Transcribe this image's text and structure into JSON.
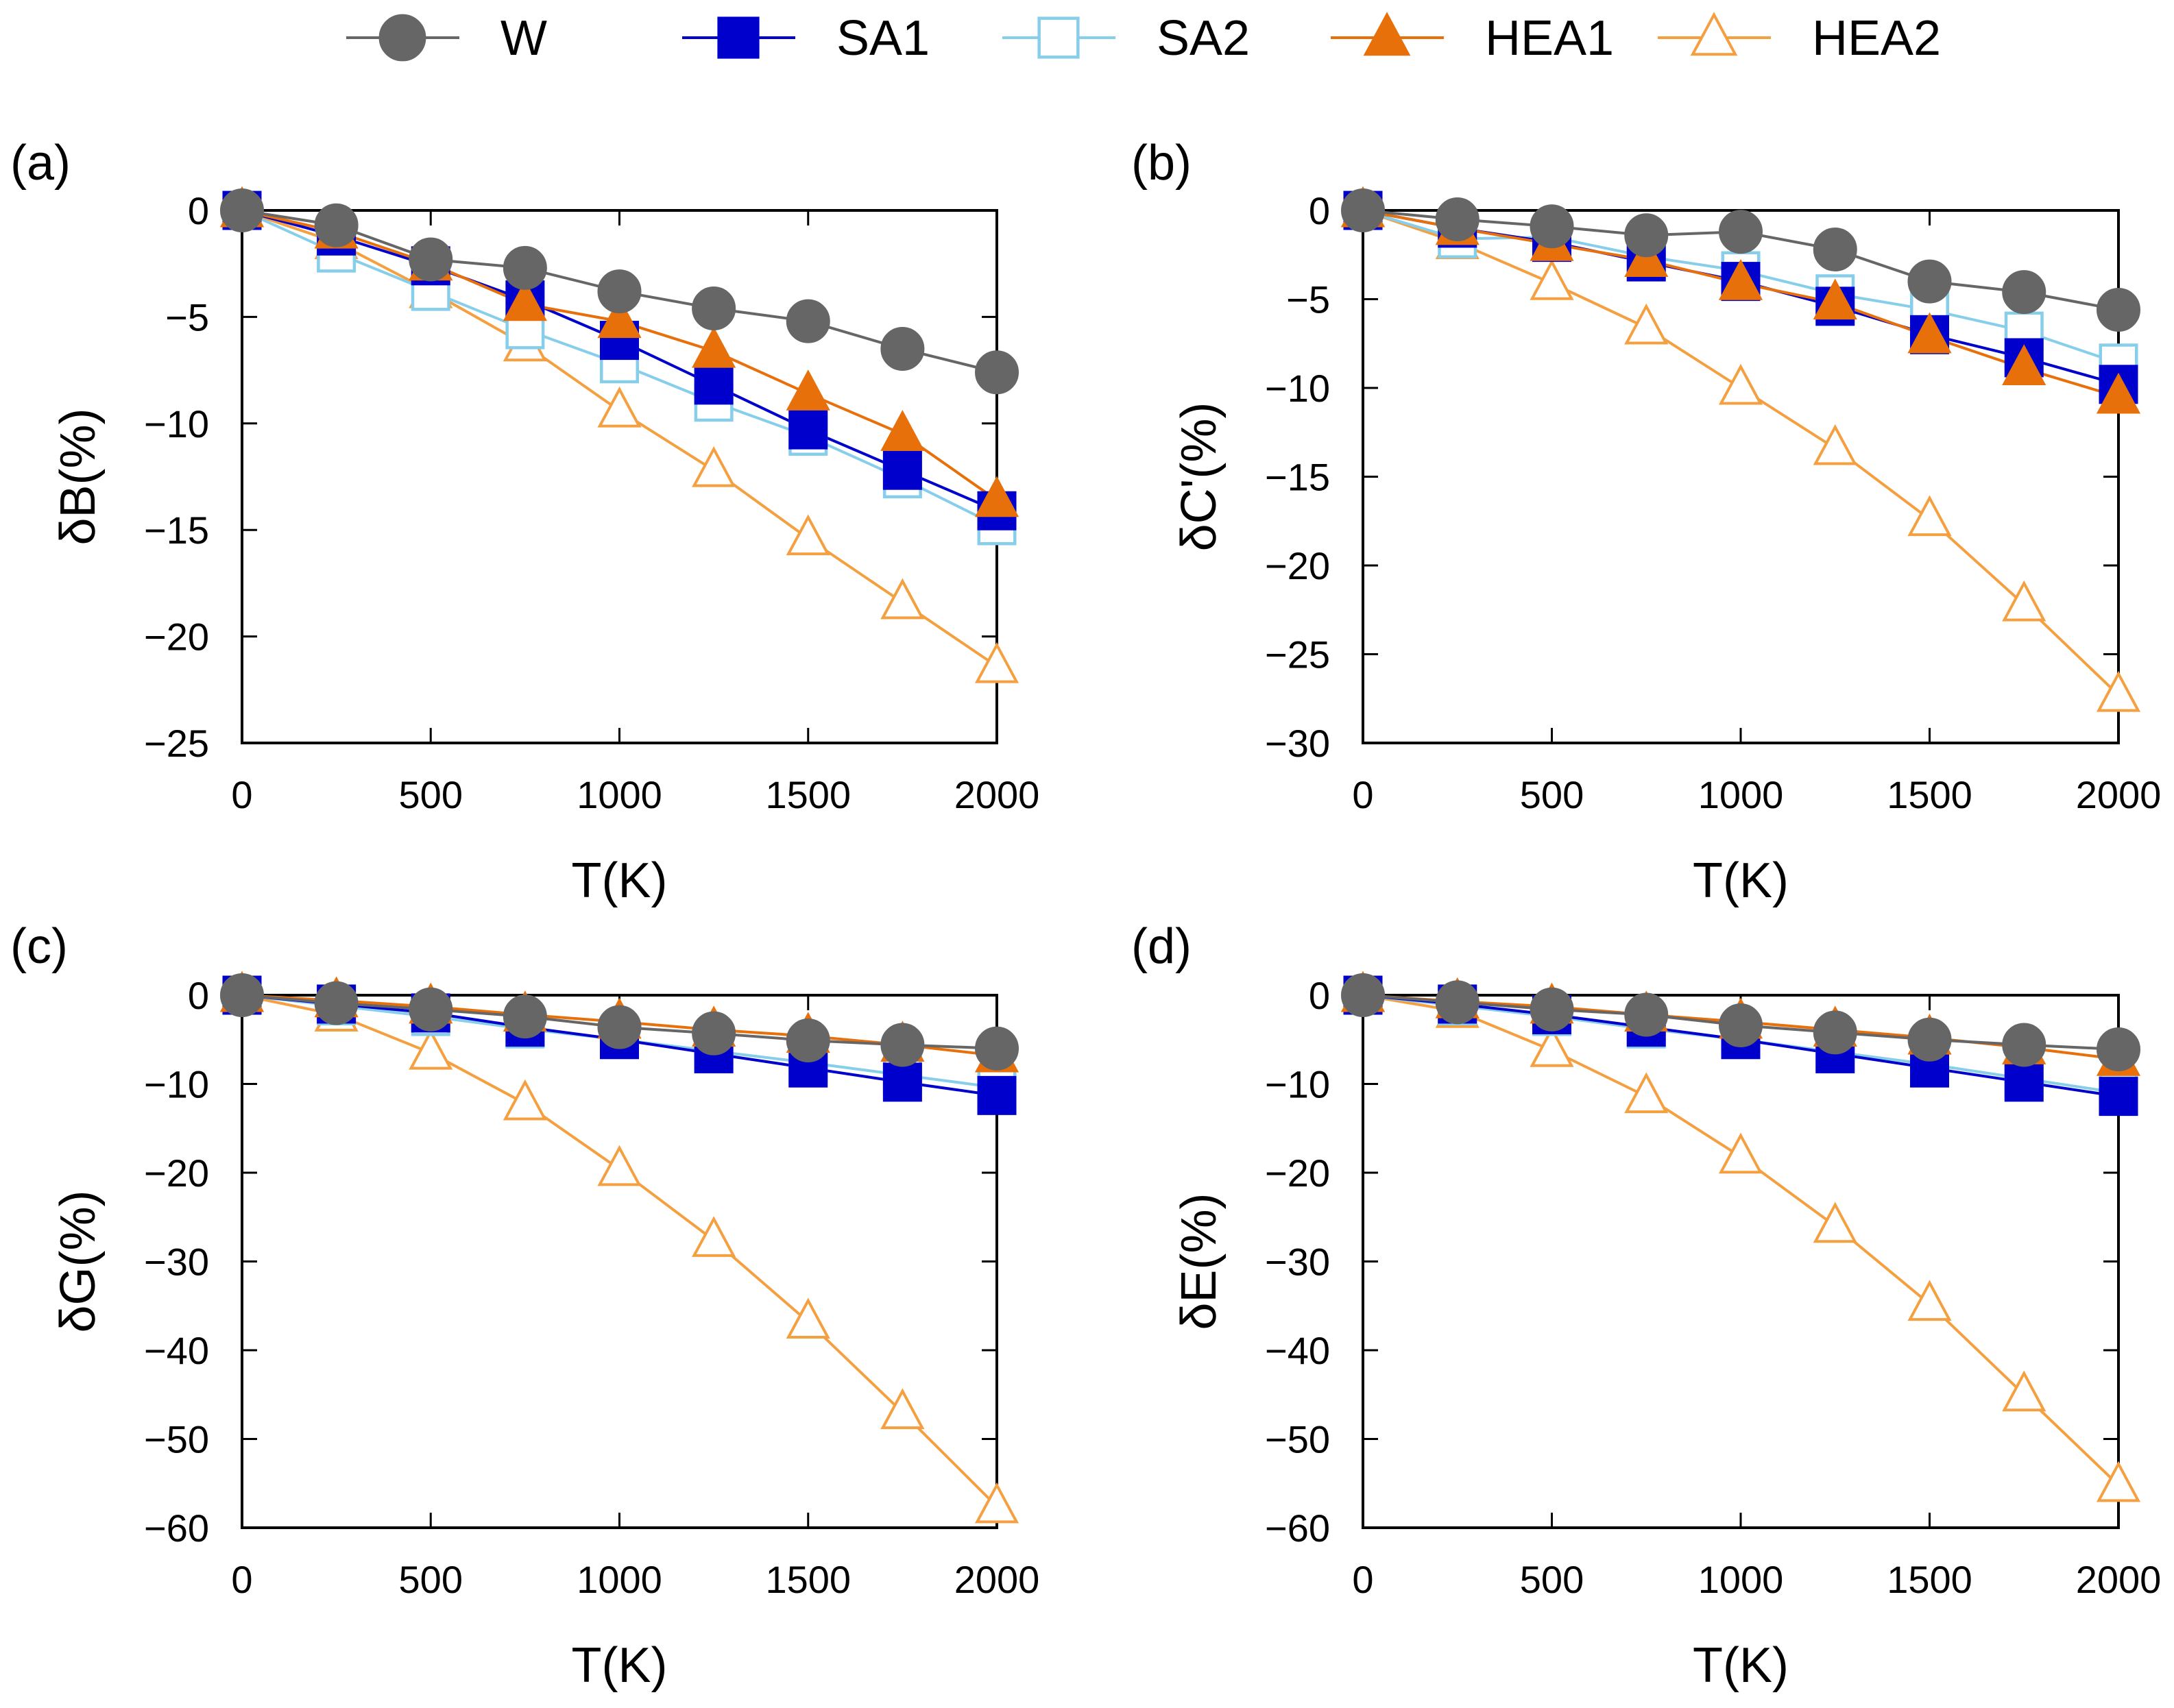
{
  "figure": {
    "series_styles": [
      {
        "key": "W",
        "color": "#666666",
        "marker": "circle",
        "filled": true
      },
      {
        "key": "SA1",
        "color": "#0000CC",
        "marker": "square",
        "filled": true
      },
      {
        "key": "SA2",
        "color": "#87CEEB",
        "marker": "square",
        "filled": false
      },
      {
        "key": "HEA1",
        "color": "#E8700A",
        "marker": "triangle",
        "filled": true
      },
      {
        "key": "HEA2",
        "color": "#F5A040",
        "marker": "triangle",
        "filled": false
      }
    ],
    "legend": {
      "placement": "top-center",
      "entries": [
        "W",
        "SA1",
        "SA2",
        "HEA1",
        "HEA2"
      ]
    }
  },
  "chart_data": [
    {
      "type": "line",
      "panel": "(a)",
      "title": "",
      "xlabel": "T(K)",
      "ylabel": "δB(%)",
      "xlim": [
        0,
        2000
      ],
      "ylim": [
        -25,
        0
      ],
      "xticks": [
        0,
        500,
        1000,
        1500,
        2000
      ],
      "yticks": [
        0,
        -5,
        -10,
        -15,
        -20,
        -25
      ],
      "x": [
        0,
        250,
        500,
        750,
        1000,
        1250,
        1500,
        1750,
        2000
      ],
      "series": [
        {
          "name": "W",
          "values": [
            0,
            -0.7,
            -2.3,
            -2.7,
            -3.8,
            -4.6,
            -5.2,
            -6.5,
            -7.6
          ]
        },
        {
          "name": "SA1",
          "values": [
            0,
            -1.2,
            -2.6,
            -4.2,
            -6.1,
            -8.2,
            -10.3,
            -12.2,
            -14.1
          ]
        },
        {
          "name": "SA2",
          "values": [
            0,
            -2.0,
            -3.8,
            -5.6,
            -7.2,
            -9.0,
            -10.6,
            -12.6,
            -14.8
          ]
        },
        {
          "name": "HEA1",
          "values": [
            0,
            -1.0,
            -2.5,
            -4.4,
            -5.2,
            -6.6,
            -8.6,
            -10.5,
            -13.6
          ]
        },
        {
          "name": "HEA2",
          "values": [
            0,
            -1.5,
            -3.8,
            -6.3,
            -9.4,
            -12.2,
            -15.4,
            -18.4,
            -21.4
          ]
        }
      ]
    },
    {
      "type": "line",
      "panel": "(b)",
      "title": "",
      "xlabel": "T(K)",
      "ylabel": "δC'(%)",
      "xlim": [
        0,
        2000
      ],
      "ylim": [
        -30,
        0
      ],
      "xticks": [
        0,
        500,
        1000,
        1500,
        2000
      ],
      "yticks": [
        0,
        -5,
        -10,
        -15,
        -20,
        -25,
        -30
      ],
      "x": [
        0,
        250,
        500,
        750,
        1000,
        1250,
        1500,
        1750,
        2000
      ],
      "series": [
        {
          "name": "W",
          "values": [
            0,
            -0.5,
            -0.9,
            -1.4,
            -1.2,
            -2.2,
            -4.0,
            -4.6,
            -5.6
          ]
        },
        {
          "name": "SA1",
          "values": [
            0,
            -1.0,
            -1.8,
            -2.9,
            -4.0,
            -5.4,
            -7.0,
            -8.3,
            -9.8
          ]
        },
        {
          "name": "SA2",
          "values": [
            0,
            -1.6,
            -1.5,
            -2.6,
            -3.4,
            -4.7,
            -5.6,
            -6.8,
            -8.6
          ]
        },
        {
          "name": "HEA1",
          "values": [
            0,
            -1.0,
            -1.9,
            -2.8,
            -4.1,
            -5.2,
            -7.1,
            -8.9,
            -10.5
          ]
        },
        {
          "name": "HEA2",
          "values": [
            0,
            -1.8,
            -4.1,
            -6.6,
            -10.0,
            -13.4,
            -17.4,
            -22.2,
            -27.3
          ]
        }
      ]
    },
    {
      "type": "line",
      "panel": "(c)",
      "title": "",
      "xlabel": "T(K)",
      "ylabel": "δG(%)",
      "xlim": [
        0,
        2000
      ],
      "ylim": [
        -60,
        0
      ],
      "xticks": [
        0,
        500,
        1000,
        1500,
        2000
      ],
      "yticks": [
        0,
        -10,
        -20,
        -30,
        -40,
        -50,
        -60
      ],
      "x": [
        0,
        250,
        500,
        750,
        1000,
        1250,
        1500,
        1750,
        2000
      ],
      "series": [
        {
          "name": "W",
          "values": [
            0,
            -0.9,
            -1.6,
            -2.4,
            -3.6,
            -4.3,
            -5.1,
            -5.6,
            -6.0
          ]
        },
        {
          "name": "SA1",
          "values": [
            0,
            -1.0,
            -2.0,
            -3.6,
            -5.0,
            -6.6,
            -8.2,
            -9.8,
            -11.3
          ]
        },
        {
          "name": "SA2",
          "values": [
            0,
            -1.2,
            -2.4,
            -3.8,
            -5.0,
            -6.3,
            -7.6,
            -9.0,
            -10.4
          ]
        },
        {
          "name": "HEA1",
          "values": [
            0,
            -0.6,
            -1.3,
            -2.2,
            -3.0,
            -3.9,
            -4.6,
            -5.6,
            -6.8
          ]
        },
        {
          "name": "HEA2",
          "values": [
            0,
            -2.2,
            -6.5,
            -12.2,
            -19.6,
            -27.6,
            -36.8,
            -47.0,
            -57.6
          ]
        }
      ]
    },
    {
      "type": "line",
      "panel": "(d)",
      "title": "",
      "xlabel": "T(K)",
      "ylabel": "δE(%)",
      "xlim": [
        0,
        2000
      ],
      "ylim": [
        -60,
        0
      ],
      "xticks": [
        0,
        500,
        1000,
        1500,
        2000
      ],
      "yticks": [
        0,
        -10,
        -20,
        -30,
        -40,
        -50,
        -60
      ],
      "x": [
        0,
        250,
        500,
        750,
        1000,
        1250,
        1500,
        1750,
        2000
      ],
      "series": [
        {
          "name": "W",
          "values": [
            0,
            -0.8,
            -1.6,
            -2.2,
            -3.4,
            -4.2,
            -5.0,
            -5.6,
            -6.1
          ]
        },
        {
          "name": "SA1",
          "values": [
            0,
            -1.0,
            -2.2,
            -3.6,
            -5.0,
            -6.6,
            -8.2,
            -9.8,
            -11.4
          ]
        },
        {
          "name": "SA2",
          "values": [
            0,
            -1.2,
            -2.4,
            -3.8,
            -5.0,
            -6.4,
            -7.8,
            -9.4,
            -11.0
          ]
        },
        {
          "name": "HEA1",
          "values": [
            0,
            -0.7,
            -1.3,
            -2.2,
            -3.0,
            -3.9,
            -4.8,
            -5.9,
            -7.2
          ]
        },
        {
          "name": "HEA2",
          "values": [
            0,
            -1.8,
            -6.2,
            -11.4,
            -18.2,
            -26.0,
            -34.8,
            -45.0,
            -55.2
          ]
        }
      ]
    }
  ]
}
